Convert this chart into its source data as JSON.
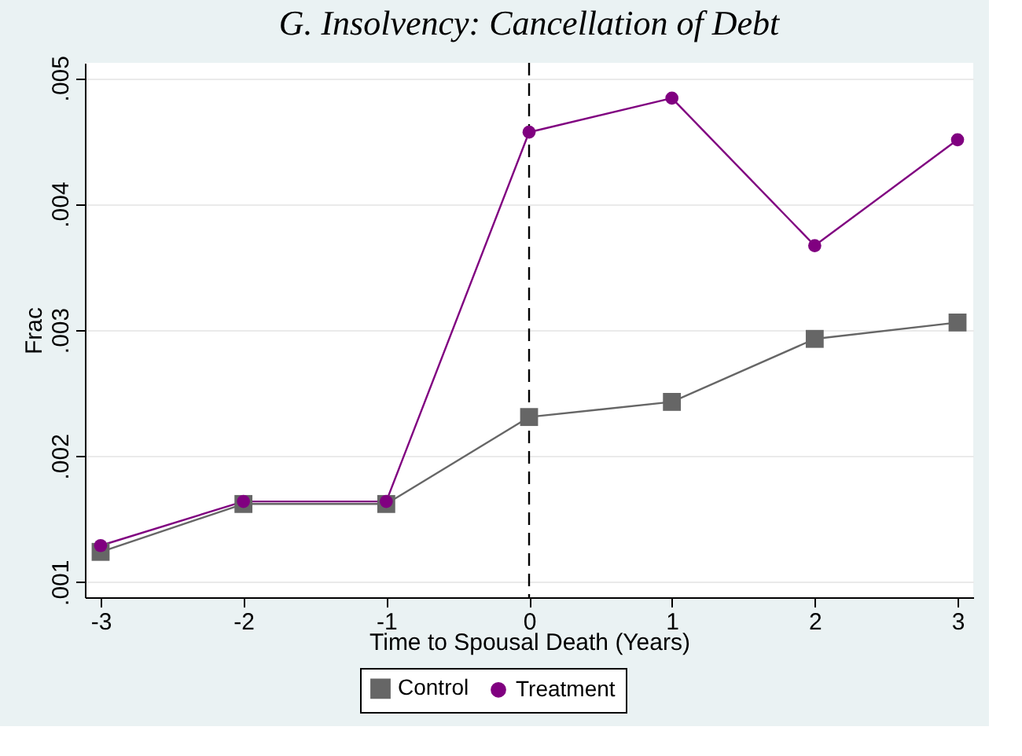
{
  "chart_data": {
    "type": "line",
    "title": "G. Insolvency: Cancellation of Debt",
    "xlabel": "Time to Spousal Death (Years)",
    "ylabel": "Frac",
    "x": [
      -3,
      -2,
      -1,
      0,
      1,
      2,
      3
    ],
    "series": [
      {
        "name": "Control",
        "color": "#666666",
        "marker": "square",
        "values": [
          0.00124,
          0.00162,
          0.00162,
          0.00231,
          0.00243,
          0.00293,
          0.00306
        ]
      },
      {
        "name": "Treatment",
        "color": "#800080",
        "marker": "circle",
        "values": [
          0.00129,
          0.00164,
          0.00164,
          0.00457,
          0.00484,
          0.00367,
          0.00451
        ]
      }
    ],
    "xlim": [
      -3.11,
      3.11
    ],
    "xticks": [
      -3,
      -2,
      -1,
      0,
      1,
      2,
      3
    ],
    "ylim": [
      0.00088,
      0.00512
    ],
    "yticks": [
      {
        "value": 0.001,
        "label": ".001"
      },
      {
        "value": 0.002,
        "label": ".002"
      },
      {
        "value": 0.003,
        "label": ".003"
      },
      {
        "value": 0.004,
        "label": ".004"
      },
      {
        "value": 0.005,
        "label": ".005"
      }
    ],
    "grid": "y",
    "legend": "bottom",
    "ref_lines": [
      {
        "axis": "x",
        "value": 0,
        "color": "#000000",
        "line_style": "dashed"
      }
    ]
  }
}
